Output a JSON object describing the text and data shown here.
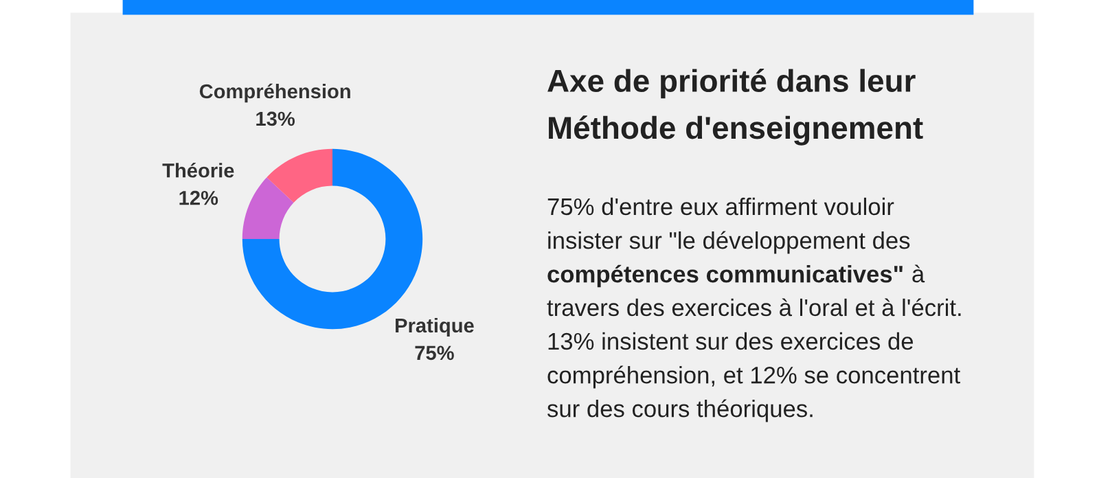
{
  "chart_data": {
    "type": "donut",
    "title": "Axe de priorité dans leur\nMéthode d'enseignement",
    "categories": [
      "Pratique",
      "Théorie",
      "Compréhension"
    ],
    "values": [
      75,
      12,
      13
    ],
    "value_labels": [
      "75%",
      "12%",
      "13%"
    ],
    "colors": [
      "#0a84ff",
      "#cc66d6",
      "#ff6584"
    ],
    "annotations": [
      "75% d'entre eux affirment vouloir",
      "insister sur \"le développement des",
      "compétences communicatives\"",
      " à",
      "travers des exercices à l'oral et à l'écrit.",
      "13% insistent sur des exercices de",
      "compréhension, et 12% se concentrent",
      "sur des cours théoriques."
    ]
  }
}
